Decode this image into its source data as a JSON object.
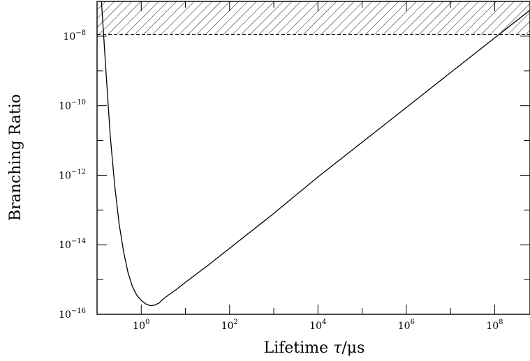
{
  "chart_data": {
    "type": "line",
    "title": "",
    "xlabel": {
      "text": "Lifetime ",
      "symbol": "τ",
      "unit": "/μs"
    },
    "ylabel": "Branching Ratio",
    "x_scale": "log10",
    "y_scale": "log10",
    "xlim_log10": [
      -1,
      8.8
    ],
    "ylim_log10": [
      -16,
      -7
    ],
    "x_ticks": [
      {
        "base": "10",
        "exp": "0",
        "value_log10": 0
      },
      {
        "base": "10",
        "exp": "2",
        "value_log10": 2
      },
      {
        "base": "10",
        "exp": "4",
        "value_log10": 4
      },
      {
        "base": "10",
        "exp": "6",
        "value_log10": 6
      },
      {
        "base": "10",
        "exp": "8",
        "value_log10": 8
      }
    ],
    "y_ticks": [
      {
        "base": "10",
        "exp": "−8",
        "value_log10": -8
      },
      {
        "base": "10",
        "exp": "−10",
        "value_log10": -10
      },
      {
        "base": "10",
        "exp": "−12",
        "value_log10": -12
      },
      {
        "base": "10",
        "exp": "−14",
        "value_log10": -14
      },
      {
        "base": "10",
        "exp": "−16",
        "value_log10": -16
      }
    ],
    "series": [
      {
        "line_style": "solid",
        "x_log10": [
          -0.9,
          -0.85,
          -0.8,
          -0.7,
          -0.6,
          -0.5,
          -0.4,
          -0.3,
          -0.2,
          -0.1,
          0.0,
          0.1,
          0.2,
          0.3,
          0.4,
          0.5,
          0.6,
          0.8,
          1.0,
          1.5,
          2.0,
          3.0,
          4.0,
          5.0,
          6.0,
          7.0,
          8.0,
          8.8
        ],
        "y_log10": [
          -7.0,
          -8.0,
          -9.0,
          -10.9,
          -12.3,
          -13.4,
          -14.2,
          -14.8,
          -15.2,
          -15.45,
          -15.6,
          -15.7,
          -15.75,
          -15.74,
          -15.68,
          -15.56,
          -15.46,
          -15.28,
          -15.08,
          -14.6,
          -14.1,
          -13.1,
          -12.05,
          -11.05,
          -10.05,
          -9.05,
          -8.05,
          -7.25
        ]
      }
    ],
    "excluded_region": {
      "style": "hatched",
      "y_lower_log10": -7.95,
      "boundary_line_style": "dashed"
    },
    "grid": false,
    "legend": "none"
  }
}
